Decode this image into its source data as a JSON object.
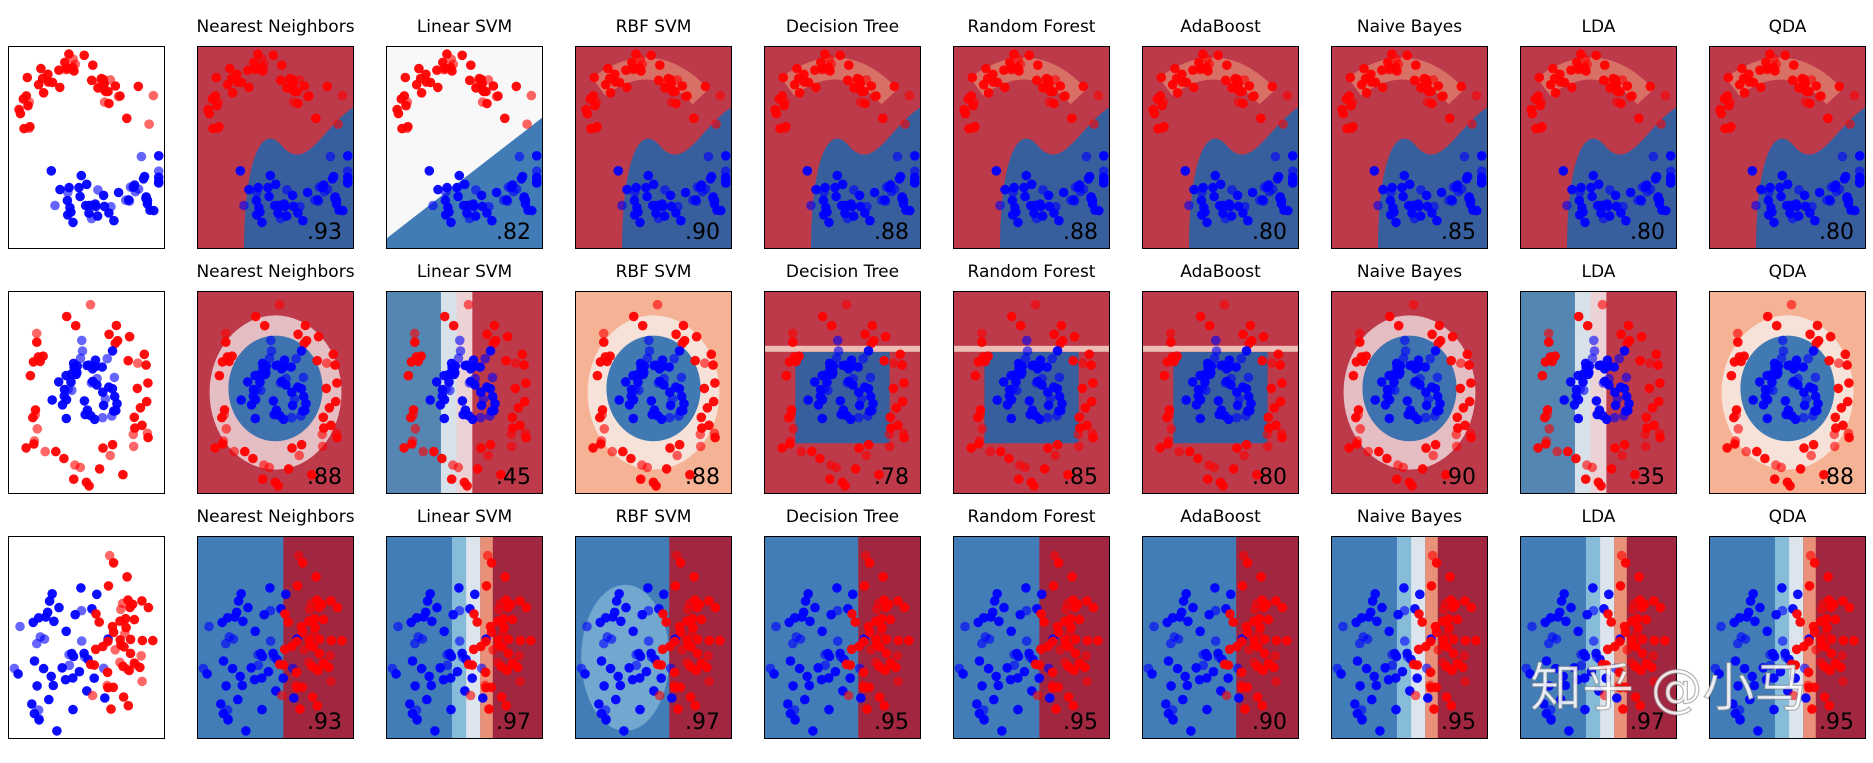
{
  "chart_data": {
    "type": "scatter",
    "description_of_layout": "3 datasets (rows) x 10 panels (input data + 9 classifier decision boundaries); score printed lower-right of each classifier panel",
    "columns": [
      "",
      "Nearest Neighbors",
      "Linear SVM",
      "RBF SVM",
      "Decision Tree",
      "Random Forest",
      "AdaBoost",
      "Naive Bayes",
      "LDA",
      "QDA"
    ],
    "datasets": [
      {
        "name": "moons",
        "scores": [
          ".93",
          ".82",
          ".90",
          ".88",
          ".88",
          ".80",
          ".85",
          ".80",
          ".80"
        ]
      },
      {
        "name": "circles",
        "scores": [
          ".88",
          ".45",
          ".88",
          ".78",
          ".85",
          ".80",
          ".90",
          ".35",
          ".88"
        ]
      },
      {
        "name": "linear",
        "scores": [
          ".93",
          ".97",
          ".97",
          ".95",
          ".95",
          ".90",
          ".95",
          ".97",
          ".95"
        ]
      }
    ],
    "colors": {
      "class_red": "#ff0000",
      "class_blue": "#0000ff",
      "region_red": "#b2182b",
      "region_blue": "#2166ac"
    },
    "axes": {
      "xticks": "none",
      "yticks": "none",
      "legend": "none"
    }
  },
  "watermark": "知乎 @小马"
}
